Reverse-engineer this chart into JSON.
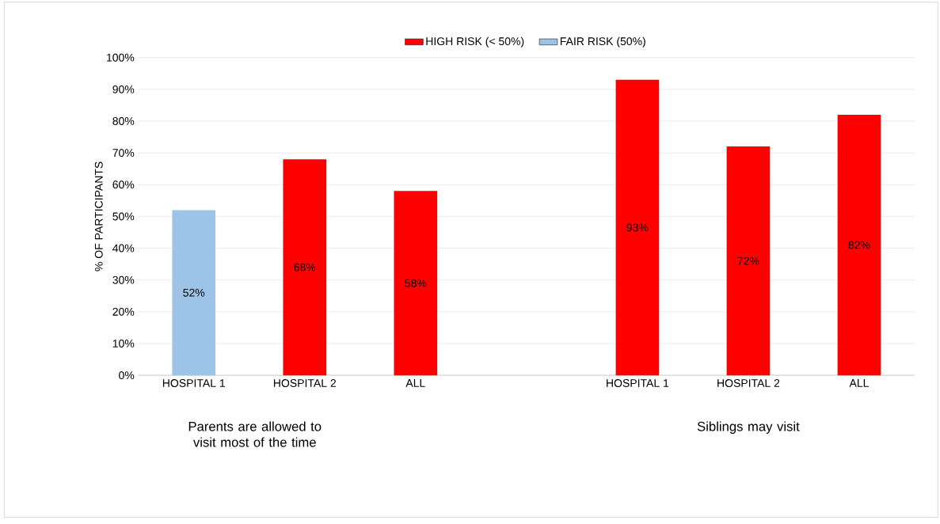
{
  "chart_data": {
    "type": "bar",
    "categories": [
      "HOSPITAL 1",
      "HOSPITAL 2",
      "ALL",
      null,
      "HOSPITAL 1",
      "HOSPITAL 2",
      "ALL"
    ],
    "series": [
      {
        "name": "HIGH RISK (< 50%)",
        "color": "#ff0000",
        "values": [
          null,
          68,
          58,
          null,
          93,
          72,
          82
        ],
        "value_labels": [
          null,
          "68%",
          "58%",
          null,
          "93%",
          "72%",
          "82%"
        ]
      },
      {
        "name": "FAIR RISK (50%)",
        "color": "#9dc3e6",
        "values": [
          52,
          null,
          null,
          null,
          null,
          null,
          null
        ],
        "value_labels": [
          "52%",
          null,
          null,
          null,
          null,
          null,
          null
        ]
      }
    ],
    "ylabel": "% OF PARTICIPANTS",
    "ylim": [
      0,
      100
    ],
    "yticks": [
      {
        "value": 0,
        "label": "0%"
      },
      {
        "value": 10,
        "label": "10%"
      },
      {
        "value": 20,
        "label": "20%"
      },
      {
        "value": 30,
        "label": "30%"
      },
      {
        "value": 40,
        "label": "40%"
      },
      {
        "value": 50,
        "label": "50%"
      },
      {
        "value": 60,
        "label": "60%"
      },
      {
        "value": 70,
        "label": "70%"
      },
      {
        "value": 80,
        "label": "80%"
      },
      {
        "value": 90,
        "label": "90%"
      },
      {
        "value": 100,
        "label": "100%"
      }
    ],
    "grid": "y",
    "legend": "top",
    "annotations": [
      "Parents are allowed to visit most of the time",
      "Siblings may visit"
    ]
  }
}
